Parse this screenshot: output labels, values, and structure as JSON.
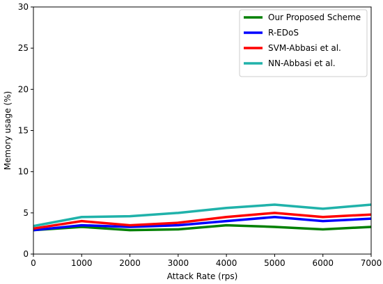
{
  "chart_data": {
    "type": "line",
    "title": "",
    "xlabel": "Attack Rate (rps)",
    "ylabel": "Memory usage (%)",
    "xlim": [
      0,
      7000
    ],
    "ylim": [
      0,
      30
    ],
    "xticks": [
      0,
      1000,
      2000,
      3000,
      4000,
      5000,
      6000,
      7000
    ],
    "yticks": [
      0,
      5,
      10,
      15,
      20,
      25,
      30
    ],
    "grid": false,
    "legend_position": "top-right",
    "x": [
      0,
      1000,
      2000,
      3000,
      4000,
      5000,
      6000,
      7000
    ],
    "series": [
      {
        "name": "Our Proposed Scheme",
        "color": "#008000",
        "values": [
          2.9,
          3.3,
          2.9,
          3.0,
          3.5,
          3.3,
          3.0,
          3.3
        ]
      },
      {
        "name": "R-EDoS",
        "color": "#0000ff",
        "values": [
          2.9,
          3.5,
          3.3,
          3.5,
          4.0,
          4.5,
          4.0,
          4.3
        ]
      },
      {
        "name": "SVM-Abbasi et al.",
        "color": "#ff0000",
        "values": [
          3.1,
          4.0,
          3.5,
          3.8,
          4.5,
          5.0,
          4.5,
          4.8
        ]
      },
      {
        "name": "NN-Abbasi et al.",
        "color": "#20b2aa",
        "values": [
          3.4,
          4.5,
          4.6,
          5.0,
          5.6,
          6.0,
          5.5,
          6.0
        ]
      }
    ]
  }
}
